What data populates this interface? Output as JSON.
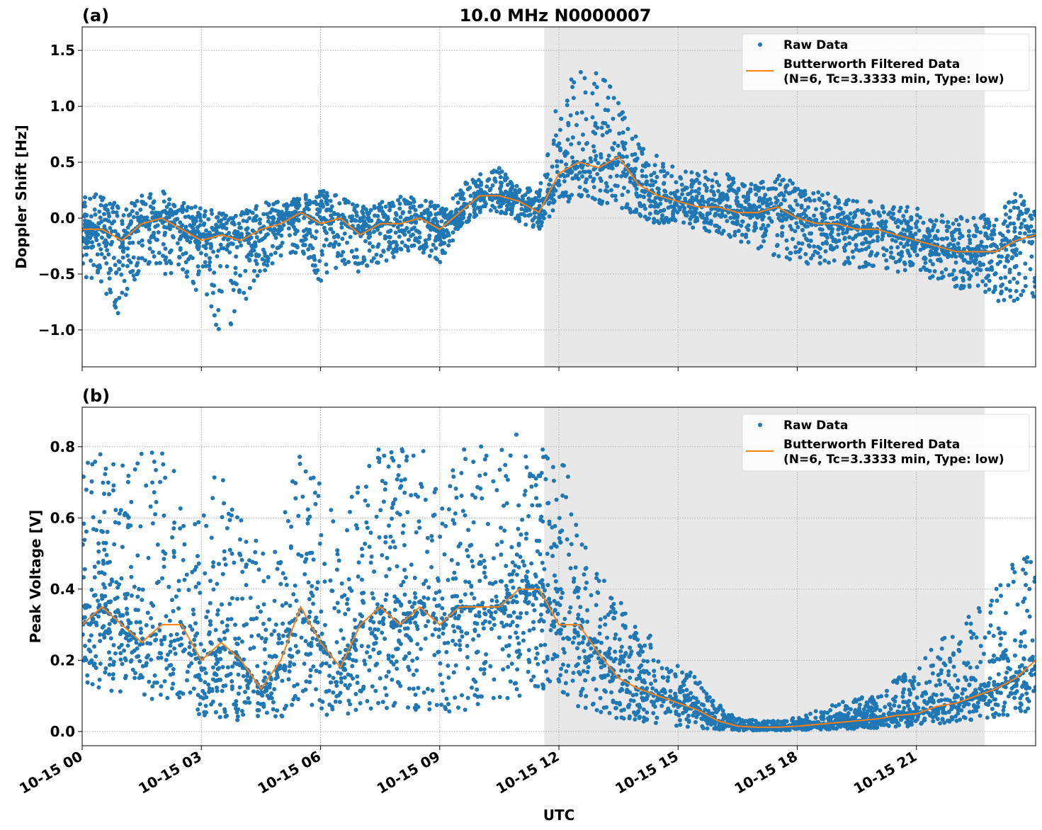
{
  "title": "10.0 MHz N0000007",
  "xlabel": "UTC",
  "x_tick_labels": [
    "10-15 00",
    "10-15 03",
    "10-15 06",
    "10-15 09",
    "10-15 12",
    "10-15 15",
    "10-15 18",
    "10-15 21"
  ],
  "x_ticks_hours": [
    0,
    3,
    6,
    9,
    12,
    15,
    18,
    21
  ],
  "colors": {
    "raw": "#1f77b4",
    "filtered": "#ff7f0e",
    "shade": "#e8e8e8",
    "grid": "#b0b0b0"
  },
  "legend": {
    "raw": "Raw Data",
    "filtered_line1": "Butterworth Filtered Data",
    "filtered_line2": "(N=6, Tc=3.3333 min, Type: low)",
    "placement": "top-right"
  },
  "chart_data": [
    {
      "type": "scatter",
      "panel_label": "(a)",
      "ylabel": "Doppler Shift [Hz]",
      "xlim_hours": [
        0,
        24
      ],
      "ylim": [
        -1.33,
        1.71
      ],
      "y_ticks": [
        -1.0,
        -0.5,
        0.0,
        0.5,
        1.0,
        1.5
      ],
      "y_tick_labels": [
        "−1.0",
        "−0.5",
        "0.0",
        "0.5",
        "1.0",
        "1.5"
      ],
      "grid": true,
      "shaded_region_hours": [
        11.63,
        22.72
      ],
      "x_hours": [
        0,
        0.5,
        1,
        1.5,
        2,
        2.5,
        3,
        3.5,
        4,
        4.5,
        5,
        5.5,
        6,
        6.5,
        7,
        7.5,
        8,
        8.5,
        9,
        9.5,
        10,
        10.5,
        11,
        11.5,
        12,
        12.5,
        13,
        13.5,
        14,
        14.5,
        15,
        15.5,
        16,
        16.5,
        17,
        17.5,
        18,
        18.5,
        19,
        19.5,
        20,
        20.5,
        21,
        21.5,
        22,
        22.5,
        23,
        23.5,
        24
      ],
      "series": [
        {
          "name": "Butterworth Filtered Data",
          "kind": "line",
          "values": [
            -0.1,
            -0.1,
            -0.2,
            -0.05,
            0.0,
            -0.1,
            -0.2,
            -0.15,
            -0.2,
            -0.1,
            -0.05,
            0.05,
            -0.05,
            0.0,
            -0.15,
            -0.05,
            -0.05,
            0.0,
            -0.1,
            0.05,
            0.2,
            0.2,
            0.15,
            0.05,
            0.4,
            0.5,
            0.45,
            0.55,
            0.3,
            0.2,
            0.15,
            0.1,
            0.1,
            0.05,
            0.05,
            0.1,
            0.0,
            -0.05,
            -0.05,
            -0.1,
            -0.1,
            -0.15,
            -0.2,
            -0.25,
            -0.3,
            -0.3,
            -0.3,
            -0.2,
            -0.15
          ]
        },
        {
          "name": "Raw Data",
          "kind": "scatter-envelope",
          "lower": [
            -0.5,
            -0.7,
            -0.9,
            -0.4,
            -0.5,
            -0.5,
            -0.7,
            -1.1,
            -0.8,
            -0.5,
            -0.4,
            -0.3,
            -0.6,
            -0.4,
            -0.5,
            -0.4,
            -0.35,
            -0.3,
            -0.4,
            -0.1,
            0.05,
            0.05,
            -0.05,
            -0.1,
            0.1,
            0.2,
            0.1,
            0.1,
            0.0,
            -0.05,
            -0.05,
            -0.1,
            -0.15,
            -0.2,
            -0.3,
            -0.35,
            -0.4,
            -0.45,
            -0.4,
            -0.45,
            -0.45,
            -0.5,
            -0.5,
            -0.55,
            -0.65,
            -0.6,
            -0.8,
            -0.75,
            -0.7
          ],
          "upper": [
            0.3,
            0.2,
            0.1,
            0.2,
            0.25,
            0.15,
            0.1,
            0.05,
            0.05,
            0.15,
            0.15,
            0.2,
            0.25,
            0.2,
            0.1,
            0.15,
            0.2,
            0.2,
            0.1,
            0.3,
            0.4,
            0.45,
            0.3,
            0.25,
            1.1,
            1.5,
            1.3,
            1.1,
            0.7,
            0.55,
            0.45,
            0.4,
            0.45,
            0.35,
            0.3,
            0.4,
            0.3,
            0.25,
            0.2,
            0.15,
            0.15,
            0.1,
            0.1,
            0.05,
            0.0,
            0.05,
            0.0,
            0.25,
            0.1
          ]
        }
      ]
    },
    {
      "type": "scatter",
      "panel_label": "(b)",
      "ylabel": "Peak Voltage [V]",
      "xlim_hours": [
        0,
        24
      ],
      "ylim": [
        -0.04,
        0.911
      ],
      "y_ticks": [
        0.0,
        0.2,
        0.4,
        0.6,
        0.8
      ],
      "y_tick_labels": [
        "0.0",
        "0.2",
        "0.4",
        "0.6",
        "0.8"
      ],
      "grid": true,
      "shaded_region_hours": [
        11.63,
        22.72
      ],
      "x_hours": [
        0,
        0.5,
        1,
        1.5,
        2,
        2.5,
        3,
        3.5,
        4,
        4.5,
        5,
        5.5,
        6,
        6.5,
        7,
        7.5,
        8,
        8.5,
        9,
        9.5,
        10,
        10.5,
        11,
        11.5,
        12,
        12.5,
        13,
        13.5,
        14,
        14.5,
        15,
        15.5,
        16,
        16.5,
        17,
        17.5,
        18,
        18.5,
        19,
        19.5,
        20,
        20.5,
        21,
        21.5,
        22,
        22.5,
        23,
        23.5,
        24
      ],
      "series": [
        {
          "name": "Butterworth Filtered Data",
          "kind": "line",
          "values": [
            0.3,
            0.35,
            0.3,
            0.25,
            0.3,
            0.3,
            0.2,
            0.25,
            0.2,
            0.12,
            0.2,
            0.35,
            0.25,
            0.18,
            0.3,
            0.35,
            0.3,
            0.35,
            0.3,
            0.35,
            0.35,
            0.35,
            0.4,
            0.4,
            0.3,
            0.3,
            0.22,
            0.15,
            0.12,
            0.1,
            0.08,
            0.06,
            0.03,
            0.015,
            0.012,
            0.012,
            0.015,
            0.02,
            0.025,
            0.03,
            0.035,
            0.045,
            0.05,
            0.07,
            0.08,
            0.1,
            0.12,
            0.15,
            0.2
          ]
        },
        {
          "name": "Raw Data",
          "kind": "scatter-envelope",
          "lower": [
            0.1,
            0.12,
            0.1,
            0.08,
            0.1,
            0.08,
            0.04,
            0.04,
            0.03,
            0.02,
            0.03,
            0.08,
            0.05,
            0.04,
            0.06,
            0.06,
            0.05,
            0.06,
            0.04,
            0.05,
            0.06,
            0.08,
            0.1,
            0.12,
            0.1,
            0.07,
            0.05,
            0.03,
            0.03,
            0.02,
            0.015,
            0.01,
            0.005,
            0.003,
            0.003,
            0.003,
            0.004,
            0.005,
            0.006,
            0.008,
            0.01,
            0.012,
            0.015,
            0.02,
            0.025,
            0.03,
            0.04,
            0.05,
            0.06
          ],
          "upper": [
            0.82,
            0.78,
            0.75,
            0.8,
            0.8,
            0.7,
            0.6,
            0.8,
            0.7,
            0.5,
            0.6,
            0.8,
            0.7,
            0.6,
            0.75,
            0.8,
            0.8,
            0.8,
            0.8,
            0.82,
            0.8,
            0.84,
            0.85,
            0.86,
            0.8,
            0.65,
            0.45,
            0.38,
            0.3,
            0.25,
            0.2,
            0.15,
            0.08,
            0.04,
            0.03,
            0.03,
            0.04,
            0.06,
            0.08,
            0.1,
            0.1,
            0.15,
            0.18,
            0.25,
            0.3,
            0.35,
            0.4,
            0.5,
            0.5
          ]
        }
      ]
    }
  ]
}
